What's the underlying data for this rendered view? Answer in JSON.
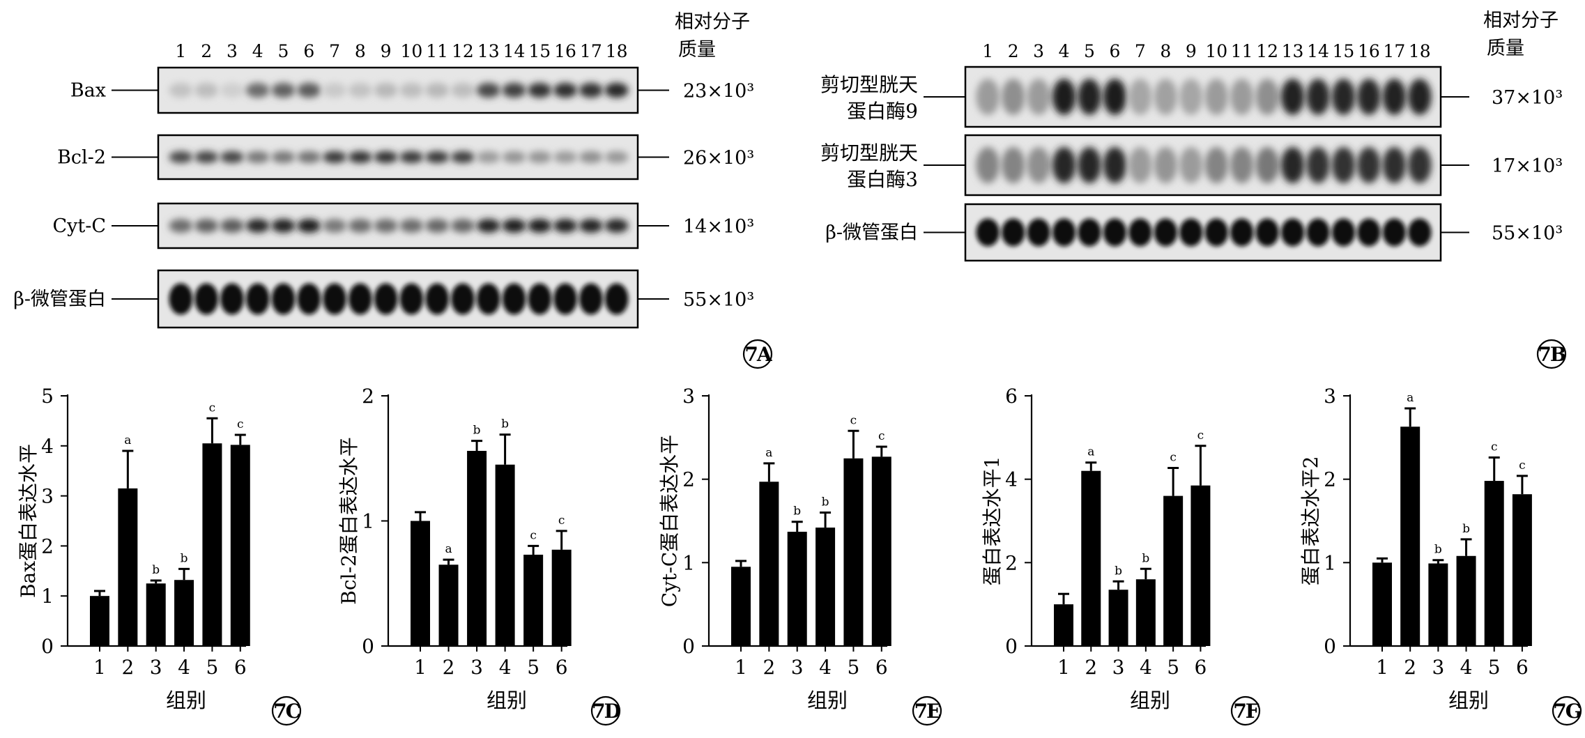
{
  "panel_a": {
    "lane_numbers": [
      "1",
      "2",
      "3",
      "4",
      "5",
      "6",
      "7",
      "8",
      "9",
      "10",
      "11",
      "12",
      "13",
      "14",
      "15",
      "16",
      "17",
      "18"
    ],
    "mw_header": [
      "相对分子",
      "质量"
    ],
    "rows": [
      {
        "label": [
          "Bax"
        ],
        "mw": "23×10³",
        "band_intensity": [
          0.18,
          0.2,
          0.12,
          0.55,
          0.6,
          0.62,
          0.15,
          0.18,
          0.22,
          0.2,
          0.22,
          0.2,
          0.7,
          0.75,
          0.8,
          0.82,
          0.8,
          0.85
        ],
        "band_height": 0.3
      },
      {
        "label": [
          "Bcl-2"
        ],
        "mw": "26×10³",
        "band_intensity": [
          0.7,
          0.72,
          0.72,
          0.5,
          0.5,
          0.52,
          0.78,
          0.8,
          0.8,
          0.78,
          0.78,
          0.76,
          0.35,
          0.38,
          0.38,
          0.35,
          0.4,
          0.36
        ],
        "band_height": 0.25
      },
      {
        "label": [
          "Cyt-C"
        ],
        "mw": "14×10³",
        "band_intensity": [
          0.55,
          0.6,
          0.62,
          0.85,
          0.88,
          0.9,
          0.5,
          0.55,
          0.55,
          0.55,
          0.58,
          0.58,
          0.88,
          0.9,
          0.9,
          0.88,
          0.88,
          0.86
        ],
        "band_height": 0.28
      },
      {
        "label": [
          "β-微管蛋白"
        ],
        "mw": "55×10³",
        "band_intensity": [
          0.95,
          0.95,
          0.95,
          0.95,
          0.95,
          0.95,
          0.95,
          0.95,
          0.95,
          0.95,
          0.95,
          0.95,
          0.95,
          0.95,
          0.95,
          0.95,
          0.95,
          0.95
        ],
        "band_height": 0.5
      }
    ],
    "tag": "7A"
  },
  "panel_b": {
    "lane_numbers": [
      "1",
      "2",
      "3",
      "4",
      "5",
      "6",
      "7",
      "8",
      "9",
      "10",
      "11",
      "12",
      "13",
      "14",
      "15",
      "16",
      "17",
      "18"
    ],
    "mw_header": [
      "相对分子",
      "质量"
    ],
    "rows": [
      {
        "label": [
          "剪切型胱天",
          "蛋白酶9"
        ],
        "mw": "37×10³",
        "band_intensity": [
          0.35,
          0.4,
          0.35,
          0.9,
          0.88,
          0.9,
          0.3,
          0.32,
          0.3,
          0.35,
          0.35,
          0.4,
          0.88,
          0.85,
          0.85,
          0.85,
          0.88,
          0.88
        ],
        "band_height": 0.55
      },
      {
        "label": [
          "剪切型胱天",
          "蛋白酶3"
        ],
        "mw": "17×10³",
        "band_intensity": [
          0.45,
          0.45,
          0.4,
          0.85,
          0.85,
          0.85,
          0.35,
          0.38,
          0.35,
          0.45,
          0.45,
          0.5,
          0.85,
          0.8,
          0.8,
          0.8,
          0.82,
          0.8
        ],
        "band_height": 0.55
      },
      {
        "label": [
          "β-微管蛋白"
        ],
        "mw": "55×10³",
        "band_intensity": [
          0.95,
          0.95,
          0.95,
          0.95,
          0.95,
          0.95,
          0.95,
          0.95,
          0.95,
          0.95,
          0.95,
          0.95,
          0.95,
          0.95,
          0.95,
          0.95,
          0.95,
          0.95
        ],
        "band_height": 0.45
      }
    ],
    "tag": "7B"
  },
  "chart_data": [
    {
      "type": "bar",
      "tag": "7C",
      "categories": [
        "1",
        "2",
        "3",
        "4",
        "5",
        "6"
      ],
      "values": [
        1.0,
        3.15,
        1.25,
        1.32,
        4.05,
        4.02
      ],
      "errors": [
        0.1,
        0.75,
        0.06,
        0.22,
        0.5,
        0.2
      ],
      "significance": [
        "",
        "a",
        "b",
        "b",
        "c",
        "c"
      ],
      "ylim": [
        0,
        5
      ],
      "yticks": [
        0,
        1,
        2,
        3,
        4,
        5
      ],
      "ylabel": "Bax蛋白表达水平",
      "xlabel": "组别"
    },
    {
      "type": "bar",
      "tag": "7D",
      "categories": [
        "1",
        "2",
        "3",
        "4",
        "5",
        "6"
      ],
      "values": [
        1.0,
        0.65,
        1.56,
        1.45,
        0.73,
        0.77
      ],
      "errors": [
        0.07,
        0.04,
        0.08,
        0.24,
        0.07,
        0.15
      ],
      "significance": [
        "",
        "a",
        "b",
        "b",
        "c",
        "c"
      ],
      "ylim": [
        0,
        2
      ],
      "yticks": [
        0,
        1,
        2
      ],
      "ylabel": "Bcl-2蛋白表达水平",
      "xlabel": "组别"
    },
    {
      "type": "bar",
      "tag": "7E",
      "categories": [
        "1",
        "2",
        "3",
        "4",
        "5",
        "6"
      ],
      "values": [
        0.95,
        1.97,
        1.37,
        1.42,
        2.25,
        2.27
      ],
      "errors": [
        0.07,
        0.22,
        0.12,
        0.18,
        0.33,
        0.12
      ],
      "significance": [
        "",
        "a",
        "b",
        "b",
        "c",
        "c"
      ],
      "ylim": [
        0,
        3
      ],
      "yticks": [
        0,
        1,
        2,
        3
      ],
      "ylabel": "Cyt-C蛋白表达水平",
      "xlabel": "组别"
    },
    {
      "type": "bar",
      "tag": "7F",
      "categories": [
        "1",
        "2",
        "3",
        "4",
        "5",
        "6"
      ],
      "values": [
        1.0,
        4.2,
        1.35,
        1.6,
        3.6,
        3.85
      ],
      "errors": [
        0.25,
        0.2,
        0.2,
        0.25,
        0.67,
        0.95
      ],
      "significance": [
        "",
        "a",
        "b",
        "b",
        "c",
        "c"
      ],
      "ylim": [
        0,
        6
      ],
      "yticks": [
        0,
        2,
        4,
        6
      ],
      "ylabel": "蛋白表达水平1",
      "xlabel": "组别"
    },
    {
      "type": "bar",
      "tag": "7G",
      "categories": [
        "1",
        "2",
        "3",
        "4",
        "5",
        "6"
      ],
      "values": [
        1.0,
        2.63,
        0.99,
        1.08,
        1.98,
        1.82
      ],
      "errors": [
        0.05,
        0.22,
        0.04,
        0.2,
        0.28,
        0.22
      ],
      "significance": [
        "",
        "a",
        "b",
        "b",
        "c",
        "c"
      ],
      "ylim": [
        0,
        3
      ],
      "yticks": [
        0,
        1,
        2,
        3
      ],
      "ylabel": "蛋白表达水平2",
      "xlabel": "组别"
    }
  ]
}
